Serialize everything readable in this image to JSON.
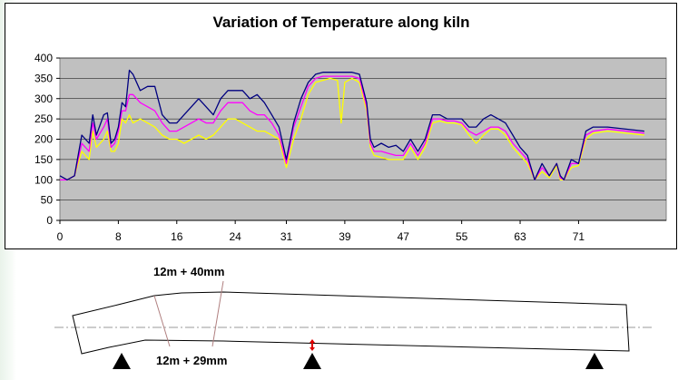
{
  "chart_data": {
    "type": "line",
    "title": "Variation of Temperature along kiln",
    "xlabel": "",
    "ylabel": "",
    "xlim": [
      0,
      83
    ],
    "ylim": [
      0,
      400
    ],
    "x_ticks": [
      0,
      8,
      16,
      24,
      31,
      39,
      47,
      55,
      63,
      71
    ],
    "y_ticks": [
      0,
      50,
      100,
      150,
      200,
      250,
      300,
      350,
      400
    ],
    "grid": true,
    "legend": "none",
    "colors": {
      "plot_bg": "#c0c0c0",
      "series_1": "#000080",
      "series_2": "#ff00ff",
      "series_3": "#ffff00"
    },
    "series": [
      {
        "color": "#000080",
        "points": [
          [
            0,
            110
          ],
          [
            1,
            100
          ],
          [
            2,
            110
          ],
          [
            3,
            210
          ],
          [
            4,
            190
          ],
          [
            4.5,
            260
          ],
          [
            5,
            210
          ],
          [
            6,
            260
          ],
          [
            6.5,
            265
          ],
          [
            7,
            190
          ],
          [
            7.5,
            200
          ],
          [
            8,
            230
          ],
          [
            8.5,
            290
          ],
          [
            9,
            280
          ],
          [
            9.5,
            370
          ],
          [
            10,
            360
          ],
          [
            11,
            320
          ],
          [
            12,
            330
          ],
          [
            13,
            330
          ],
          [
            14,
            260
          ],
          [
            15,
            240
          ],
          [
            16,
            240
          ],
          [
            17,
            260
          ],
          [
            18,
            280
          ],
          [
            19,
            300
          ],
          [
            20,
            280
          ],
          [
            21,
            260
          ],
          [
            22,
            300
          ],
          [
            23,
            320
          ],
          [
            24,
            320
          ],
          [
            25,
            320
          ],
          [
            26,
            300
          ],
          [
            27,
            310
          ],
          [
            28,
            290
          ],
          [
            29,
            260
          ],
          [
            30,
            230
          ],
          [
            31,
            150
          ],
          [
            32,
            240
          ],
          [
            33,
            300
          ],
          [
            34,
            340
          ],
          [
            35,
            360
          ],
          [
            36,
            365
          ],
          [
            37,
            365
          ],
          [
            38,
            365
          ],
          [
            39,
            365
          ],
          [
            40,
            365
          ],
          [
            41,
            360
          ],
          [
            42,
            290
          ],
          [
            42.5,
            200
          ],
          [
            43,
            180
          ],
          [
            44,
            190
          ],
          [
            45,
            180
          ],
          [
            46,
            185
          ],
          [
            47,
            170
          ],
          [
            48,
            200
          ],
          [
            49,
            170
          ],
          [
            50,
            200
          ],
          [
            51,
            260
          ],
          [
            52,
            260
          ],
          [
            53,
            250
          ],
          [
            54,
            250
          ],
          [
            55,
            250
          ],
          [
            56,
            230
          ],
          [
            57,
            230
          ],
          [
            58,
            250
          ],
          [
            59,
            260
          ],
          [
            60,
            250
          ],
          [
            61,
            240
          ],
          [
            62,
            210
          ],
          [
            63,
            180
          ],
          [
            64,
            160
          ],
          [
            65,
            100
          ],
          [
            66,
            140
          ],
          [
            67,
            110
          ],
          [
            68,
            140
          ],
          [
            68.5,
            110
          ],
          [
            69,
            100
          ],
          [
            70,
            150
          ],
          [
            71,
            140
          ],
          [
            72,
            220
          ],
          [
            73,
            230
          ],
          [
            75,
            230
          ],
          [
            80,
            220
          ]
        ]
      },
      {
        "color": "#ff00ff",
        "points": [
          [
            0,
            100
          ],
          [
            1,
            100
          ],
          [
            2,
            110
          ],
          [
            3,
            190
          ],
          [
            4,
            170
          ],
          [
            4.5,
            240
          ],
          [
            5,
            200
          ],
          [
            6,
            230
          ],
          [
            6.5,
            250
          ],
          [
            7,
            180
          ],
          [
            7.5,
            190
          ],
          [
            8,
            220
          ],
          [
            8.5,
            270
          ],
          [
            9,
            270
          ],
          [
            9.5,
            310
          ],
          [
            10,
            310
          ],
          [
            11,
            290
          ],
          [
            12,
            280
          ],
          [
            13,
            270
          ],
          [
            14,
            240
          ],
          [
            15,
            220
          ],
          [
            16,
            220
          ],
          [
            17,
            230
          ],
          [
            18,
            240
          ],
          [
            19,
            250
          ],
          [
            20,
            240
          ],
          [
            21,
            240
          ],
          [
            22,
            270
          ],
          [
            23,
            290
          ],
          [
            24,
            290
          ],
          [
            25,
            290
          ],
          [
            26,
            270
          ],
          [
            27,
            260
          ],
          [
            28,
            260
          ],
          [
            29,
            240
          ],
          [
            30,
            210
          ],
          [
            31,
            140
          ],
          [
            32,
            230
          ],
          [
            33,
            280
          ],
          [
            34,
            330
          ],
          [
            35,
            350
          ],
          [
            36,
            355
          ],
          [
            37,
            355
          ],
          [
            38,
            355
          ],
          [
            39,
            355
          ],
          [
            40,
            355
          ],
          [
            41,
            350
          ],
          [
            42,
            280
          ],
          [
            42.5,
            190
          ],
          [
            43,
            170
          ],
          [
            44,
            170
          ],
          [
            45,
            165
          ],
          [
            46,
            160
          ],
          [
            47,
            160
          ],
          [
            48,
            190
          ],
          [
            49,
            160
          ],
          [
            50,
            190
          ],
          [
            51,
            250
          ],
          [
            52,
            250
          ],
          [
            53,
            245
          ],
          [
            54,
            245
          ],
          [
            55,
            240
          ],
          [
            56,
            220
          ],
          [
            57,
            210
          ],
          [
            58,
            220
          ],
          [
            59,
            230
          ],
          [
            60,
            230
          ],
          [
            61,
            220
          ],
          [
            62,
            190
          ],
          [
            63,
            170
          ],
          [
            64,
            150
          ],
          [
            65,
            100
          ],
          [
            66,
            130
          ],
          [
            67,
            110
          ],
          [
            68,
            140
          ],
          [
            68.5,
            105
          ],
          [
            69,
            100
          ],
          [
            70,
            140
          ],
          [
            71,
            140
          ],
          [
            72,
            210
          ],
          [
            73,
            220
          ],
          [
            75,
            225
          ],
          [
            80,
            215
          ]
        ]
      },
      {
        "color": "#ffff00",
        "points": [
          [
            0,
            100
          ],
          [
            1,
            100
          ],
          [
            2,
            110
          ],
          [
            3,
            170
          ],
          [
            4,
            150
          ],
          [
            4.5,
            220
          ],
          [
            5,
            180
          ],
          [
            6,
            200
          ],
          [
            6.5,
            220
          ],
          [
            7,
            170
          ],
          [
            7.5,
            170
          ],
          [
            8,
            190
          ],
          [
            8.5,
            250
          ],
          [
            9,
            240
          ],
          [
            9.5,
            260
          ],
          [
            10,
            240
          ],
          [
            11,
            250
          ],
          [
            12,
            240
          ],
          [
            13,
            230
          ],
          [
            14,
            210
          ],
          [
            15,
            200
          ],
          [
            16,
            200
          ],
          [
            17,
            190
          ],
          [
            18,
            200
          ],
          [
            19,
            210
          ],
          [
            20,
            200
          ],
          [
            21,
            210
          ],
          [
            22,
            230
          ],
          [
            23,
            250
          ],
          [
            24,
            250
          ],
          [
            25,
            240
          ],
          [
            26,
            230
          ],
          [
            27,
            220
          ],
          [
            28,
            220
          ],
          [
            29,
            210
          ],
          [
            30,
            200
          ],
          [
            31,
            130
          ],
          [
            32,
            200
          ],
          [
            33,
            250
          ],
          [
            34,
            310
          ],
          [
            35,
            340
          ],
          [
            36,
            345
          ],
          [
            37,
            350
          ],
          [
            38,
            345
          ],
          [
            38.5,
            240
          ],
          [
            39,
            340
          ],
          [
            40,
            350
          ],
          [
            41,
            340
          ],
          [
            42,
            270
          ],
          [
            42.5,
            180
          ],
          [
            43,
            160
          ],
          [
            44,
            155
          ],
          [
            45,
            150
          ],
          [
            46,
            150
          ],
          [
            47,
            150
          ],
          [
            48,
            180
          ],
          [
            49,
            150
          ],
          [
            50,
            180
          ],
          [
            51,
            240
          ],
          [
            52,
            245
          ],
          [
            53,
            240
          ],
          [
            54,
            240
          ],
          [
            55,
            235
          ],
          [
            56,
            210
          ],
          [
            57,
            190
          ],
          [
            58,
            210
          ],
          [
            59,
            225
          ],
          [
            60,
            225
          ],
          [
            61,
            210
          ],
          [
            62,
            180
          ],
          [
            63,
            160
          ],
          [
            64,
            140
          ],
          [
            65,
            100
          ],
          [
            66,
            120
          ],
          [
            67,
            105
          ],
          [
            68,
            135
          ],
          [
            68.5,
            100
          ],
          [
            69,
            100
          ],
          [
            70,
            130
          ],
          [
            71,
            135
          ],
          [
            72,
            200
          ],
          [
            73,
            215
          ],
          [
            75,
            220
          ],
          [
            80,
            210
          ]
        ]
      }
    ]
  },
  "diagram": {
    "upper_label": "12m + 40mm",
    "lower_label": "12m + 29mm",
    "colors": {
      "outline": "#000000",
      "centerline": "#999999",
      "marker": "#e00000",
      "support": "#000000"
    }
  }
}
